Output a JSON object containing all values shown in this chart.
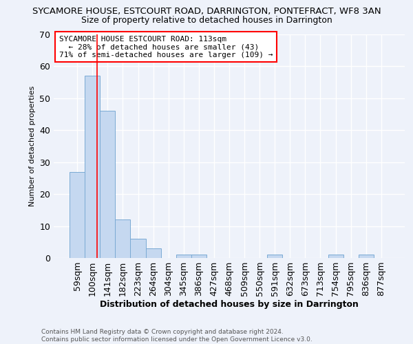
{
  "title": "SYCAMORE HOUSE, ESTCOURT ROAD, DARRINGTON, PONTEFRACT, WF8 3AN",
  "subtitle": "Size of property relative to detached houses in Darrington",
  "xlabel": "Distribution of detached houses by size in Darrington",
  "ylabel": "Number of detached properties",
  "categories": [
    "59sqm",
    "100sqm",
    "141sqm",
    "182sqm",
    "223sqm",
    "264sqm",
    "304sqm",
    "345sqm",
    "386sqm",
    "427sqm",
    "468sqm",
    "509sqm",
    "550sqm",
    "591sqm",
    "632sqm",
    "673sqm",
    "713sqm",
    "754sqm",
    "795sqm",
    "836sqm",
    "877sqm"
  ],
  "values": [
    27,
    57,
    46,
    12,
    6,
    3,
    0,
    1,
    1,
    0,
    0,
    0,
    0,
    1,
    0,
    0,
    0,
    1,
    0,
    1,
    0
  ],
  "bar_color": "#c5d8f0",
  "bar_edge_color": "#7aaad4",
  "red_line_x": 1.3,
  "annotation_title": "SYCAMORE HOUSE ESTCOURT ROAD: 113sqm",
  "annotation_line2": "  ← 28% of detached houses are smaller (43)",
  "annotation_line3": "71% of semi-detached houses are larger (109) →",
  "ylim": [
    0,
    70
  ],
  "yticks": [
    0,
    10,
    20,
    30,
    40,
    50,
    60,
    70
  ],
  "footer_line1": "Contains HM Land Registry data © Crown copyright and database right 2024.",
  "footer_line2": "Contains public sector information licensed under the Open Government Licence v3.0.",
  "background_color": "#eef2fa",
  "grid_color": "#ffffff",
  "title_fontsize": 9.5,
  "subtitle_fontsize": 9
}
